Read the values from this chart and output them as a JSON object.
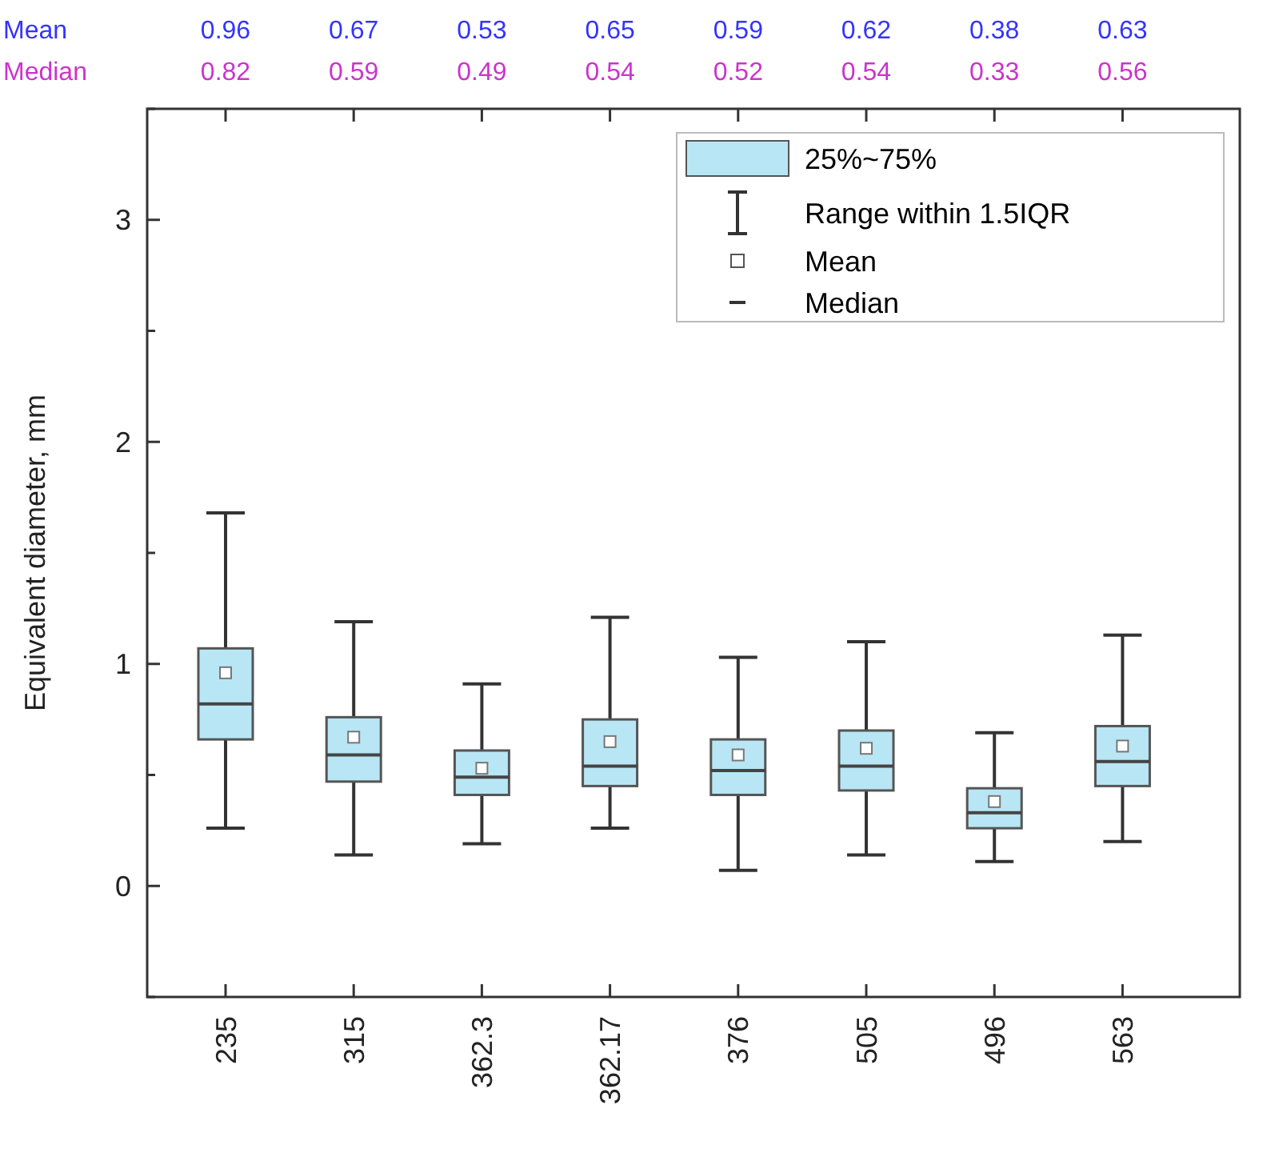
{
  "chart_data": {
    "type": "box",
    "ylabel": "Equivalent diameter, mm",
    "categories": [
      "235",
      "315",
      "362.3",
      "362.17",
      "376",
      "505",
      "496",
      "563"
    ],
    "boxes": [
      {
        "low": 0.26,
        "q1": 0.66,
        "median": 0.82,
        "q3": 1.07,
        "high": 1.68,
        "mean": 0.96
      },
      {
        "low": 0.14,
        "q1": 0.47,
        "median": 0.59,
        "q3": 0.76,
        "high": 1.19,
        "mean": 0.67
      },
      {
        "low": 0.19,
        "q1": 0.41,
        "median": 0.49,
        "q3": 0.61,
        "high": 0.91,
        "mean": 0.53
      },
      {
        "low": 0.26,
        "q1": 0.45,
        "median": 0.54,
        "q3": 0.75,
        "high": 1.21,
        "mean": 0.65
      },
      {
        "low": 0.07,
        "q1": 0.41,
        "median": 0.52,
        "q3": 0.66,
        "high": 1.03,
        "mean": 0.59
      },
      {
        "low": 0.14,
        "q1": 0.43,
        "median": 0.54,
        "q3": 0.7,
        "high": 1.1,
        "mean": 0.62
      },
      {
        "low": 0.11,
        "q1": 0.26,
        "median": 0.33,
        "q3": 0.44,
        "high": 0.69,
        "mean": 0.38
      },
      {
        "low": 0.2,
        "q1": 0.45,
        "median": 0.56,
        "q3": 0.72,
        "high": 1.13,
        "mean": 0.63
      }
    ],
    "color": "#b8e6f5",
    "ylim": [
      -0.5,
      3.5
    ],
    "yticks": [
      {
        "value": -0.5,
        "label": null
      },
      0,
      {
        "value": 0.5,
        "label": null
      },
      1,
      {
        "value": 1.5,
        "label": null
      },
      2,
      {
        "value": 2.5,
        "label": null
      },
      3,
      {
        "value": 3.5,
        "label": null
      }
    ],
    "annotations": [
      "25%~75%",
      "Range within 1.5IQR",
      "Mean",
      "Median",
      "0.96",
      "0.67",
      "0.53",
      "0.65",
      "0.59",
      "0.62",
      "0.38",
      "0.63",
      "0.82",
      "0.59",
      "0.49",
      "0.54",
      "0.52",
      "0.54",
      "0.33",
      "0.56"
    ]
  }
}
